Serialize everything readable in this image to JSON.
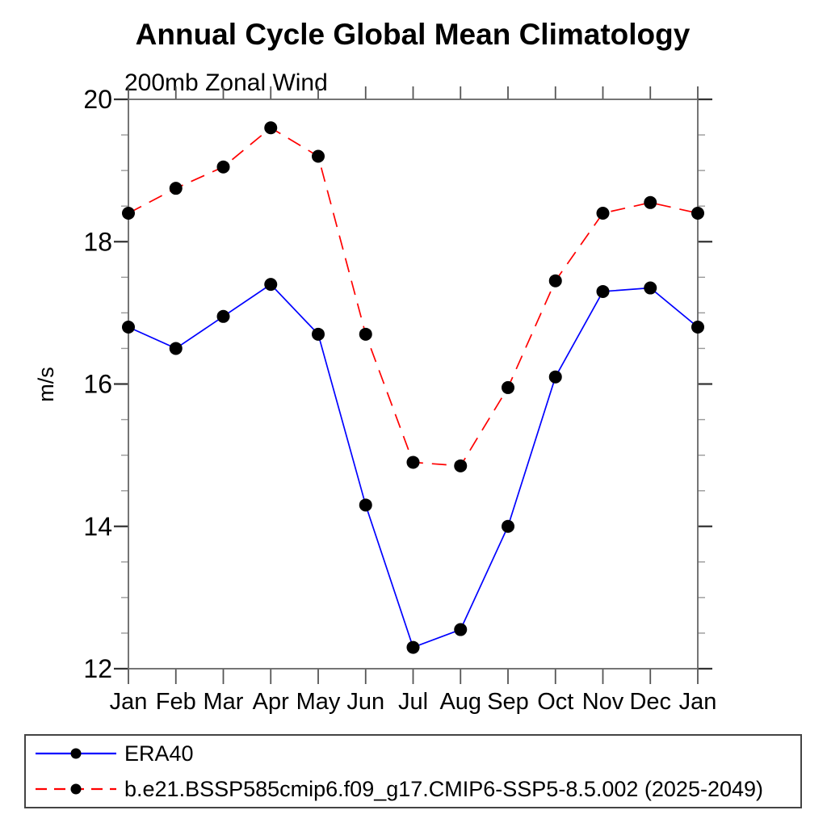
{
  "chart_data": {
    "type": "line",
    "title": "Annual Cycle Global Mean Climatology",
    "subtitle": "200mb Zonal Wind",
    "ylabel": "m/s",
    "x_categories": [
      "Jan",
      "Feb",
      "Mar",
      "Apr",
      "May",
      "Jun",
      "Jul",
      "Aug",
      "Sep",
      "Oct",
      "Nov",
      "Dec",
      "Jan"
    ],
    "ylim": [
      12,
      20
    ],
    "y_major_ticks": [
      12,
      14,
      16,
      18,
      20
    ],
    "y_minor_step": 0.5,
    "grid": false,
    "legend_position": "bottom-left-box",
    "marker": "filled-circle",
    "marker_color": "#000000",
    "series": [
      {
        "name": "ERA40",
        "color": "#0000ff",
        "style": "solid",
        "values": [
          16.8,
          16.5,
          16.95,
          17.4,
          16.7,
          14.3,
          12.3,
          12.55,
          14.0,
          16.1,
          17.3,
          17.35,
          16.8
        ]
      },
      {
        "name": "b.e21.BSSP585cmip6.f09_g17.CMIP6-SSP5-8.5.002 (2025-2049)",
        "color": "#ff0000",
        "style": "dashed",
        "values": [
          18.4,
          18.75,
          19.05,
          19.6,
          19.2,
          16.7,
          14.9,
          14.85,
          15.95,
          17.45,
          18.4,
          18.55,
          18.4
        ]
      }
    ]
  }
}
